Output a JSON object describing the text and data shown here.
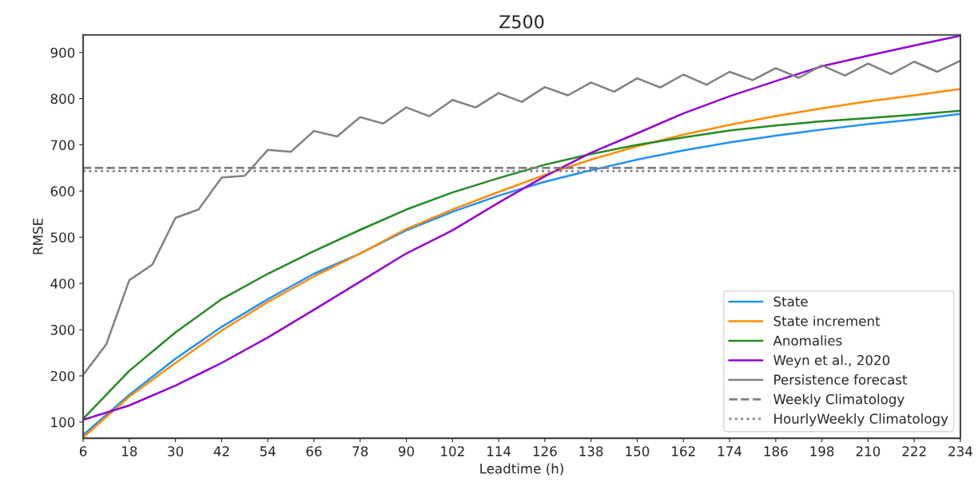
{
  "chart_data": {
    "type": "line",
    "title": "Z500",
    "xlabel": "Leadtime (h)",
    "ylabel": "RMSE",
    "xlim": [
      6,
      234
    ],
    "ylim": [
      65,
      938
    ],
    "xticks": [
      6,
      18,
      30,
      42,
      54,
      66,
      78,
      90,
      102,
      114,
      126,
      138,
      150,
      162,
      174,
      186,
      198,
      210,
      222,
      234
    ],
    "yticks": [
      100,
      200,
      300,
      400,
      500,
      600,
      700,
      800,
      900
    ],
    "grid": false,
    "legend": "bottom right",
    "line_style": "solid",
    "marker": "none",
    "series": [
      {
        "name": "State",
        "color": "#1e90ff",
        "x": [
          6,
          18,
          30,
          42,
          54,
          66,
          78,
          90,
          102,
          114,
          126,
          138,
          150,
          162,
          174,
          186,
          198,
          210,
          222,
          234
        ],
        "values": [
          72,
          159,
          237,
          306,
          366,
          421,
          465,
          515,
          555,
          590,
          620,
          645,
          668,
          688,
          705,
          720,
          733,
          745,
          755,
          767
        ]
      },
      {
        "name": "State increment",
        "color": "#ff8c00",
        "x": [
          6,
          18,
          30,
          42,
          54,
          66,
          78,
          90,
          102,
          114,
          126,
          138,
          150,
          162,
          174,
          186,
          198,
          210,
          222,
          234
        ],
        "values": [
          67,
          155,
          228,
          298,
          360,
          415,
          465,
          518,
          560,
          598,
          635,
          668,
          697,
          722,
          743,
          762,
          779,
          794,
          807,
          821
        ]
      },
      {
        "name": "Anomalies",
        "color": "#228b22",
        "x": [
          6,
          18,
          30,
          42,
          54,
          66,
          78,
          90,
          102,
          114,
          126,
          138,
          150,
          162,
          174,
          186,
          198,
          210,
          222,
          234
        ],
        "values": [
          107,
          211,
          294,
          366,
          421,
          470,
          516,
          560,
          597,
          628,
          657,
          680,
          700,
          716,
          731,
          742,
          751,
          758,
          765,
          774
        ]
      },
      {
        "name": "Weyn et al., 2020",
        "color": "#9400d3",
        "x": [
          6,
          18,
          30,
          42,
          54,
          66,
          78,
          90,
          102,
          114,
          126,
          138,
          150,
          162,
          174,
          186,
          198,
          210,
          222,
          234
        ],
        "values": [
          105,
          136,
          179,
          228,
          283,
          343,
          404,
          465,
          515,
          575,
          632,
          683,
          725,
          768,
          805,
          838,
          870,
          893,
          915,
          936
        ]
      },
      {
        "name": "Persistence forecast",
        "color": "#808080",
        "x": [
          6,
          12,
          18,
          24,
          30,
          36,
          42,
          48,
          54,
          60,
          66,
          72,
          78,
          84,
          90,
          96,
          102,
          108,
          114,
          120,
          126,
          132,
          138,
          144,
          150,
          156,
          162,
          168,
          174,
          180,
          186,
          192,
          198,
          204,
          210,
          216,
          222,
          228,
          234
        ],
        "values": [
          202,
          268,
          407,
          441,
          542,
          560,
          629,
          633,
          689,
          685,
          730,
          718,
          760,
          746,
          781,
          762,
          797,
          781,
          812,
          793,
          825,
          807,
          835,
          815,
          844,
          824,
          852,
          830,
          858,
          840,
          866,
          845,
          872,
          850,
          876,
          853,
          880,
          858,
          882
        ]
      }
    ],
    "ref_lines": [
      {
        "axis": "y",
        "value": 650,
        "label": "Weekly Climatology",
        "color": "#808080",
        "line_style": "dashed"
      },
      {
        "axis": "y",
        "value": 643,
        "label": "HourlyWeekly Climatology",
        "color": "#808080",
        "line_style": "dotted"
      }
    ]
  }
}
